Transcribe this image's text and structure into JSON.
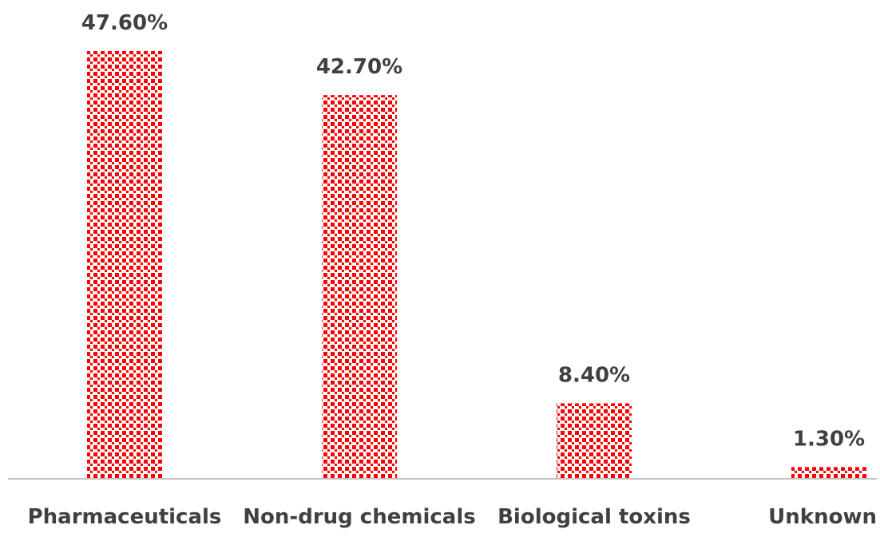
{
  "chart_data": {
    "type": "bar",
    "categories": [
      "Pharmaceuticals",
      "Non-drug chemicals",
      "Biological toxins",
      "Unknown"
    ],
    "values": [
      47.6,
      42.7,
      8.4,
      1.3
    ],
    "data_labels": [
      "47.60%",
      "42.70%",
      "8.40%",
      "1.30%"
    ],
    "title": "",
    "xlabel": "",
    "ylabel": "",
    "ylim": [
      0,
      47.6
    ],
    "grid": false,
    "legend": "none",
    "bar_fill": "red dotted pattern",
    "colors": {
      "bar": "#ff0000",
      "background": "#ffffff",
      "axis": "#bfbfbf",
      "text": "#404040"
    }
  }
}
